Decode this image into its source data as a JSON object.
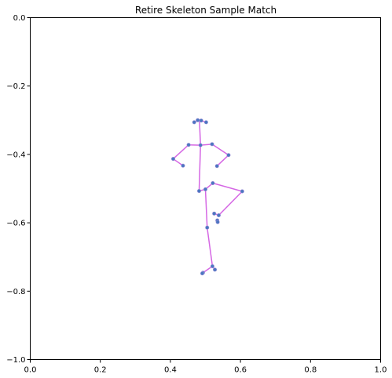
{
  "chart_data": {
    "type": "scatter",
    "title": "Retire Skeleton Sample Match",
    "xlabel": "",
    "ylabel": "",
    "xlim": [
      0,
      1
    ],
    "ylim": [
      -1,
      0
    ],
    "grid": false,
    "x_ticks": [
      0.0,
      0.2,
      0.4,
      0.6,
      0.8,
      1.0
    ],
    "x_tick_labels": [
      "0.0",
      "0.2",
      "0.4",
      "0.6",
      "0.8",
      "1.0"
    ],
    "y_ticks": [
      0.0,
      -0.2,
      -0.4,
      -0.6,
      -0.8,
      -1.0
    ],
    "y_tick_labels": [
      "0.0",
      "−0.2",
      "−0.4",
      "−0.6",
      "−0.8",
      "−1.0"
    ],
    "colors": {
      "bones": "#d567e4",
      "joints": "#4a78c0"
    },
    "joints": [
      {
        "x": 0.478,
        "y": -0.3
      },
      {
        "x": 0.488,
        "y": -0.301
      },
      {
        "x": 0.468,
        "y": -0.306
      },
      {
        "x": 0.502,
        "y": -0.306
      },
      {
        "x": 0.486,
        "y": -0.373
      },
      {
        "x": 0.452,
        "y": -0.372
      },
      {
        "x": 0.519,
        "y": -0.37
      },
      {
        "x": 0.408,
        "y": -0.413
      },
      {
        "x": 0.566,
        "y": -0.402
      },
      {
        "x": 0.436,
        "y": -0.433
      },
      {
        "x": 0.533,
        "y": -0.434
      },
      {
        "x": 0.482,
        "y": -0.507
      },
      {
        "x": 0.5,
        "y": -0.502
      },
      {
        "x": 0.521,
        "y": -0.484
      },
      {
        "x": 0.605,
        "y": -0.508
      },
      {
        "x": 0.525,
        "y": -0.573
      },
      {
        "x": 0.538,
        "y": -0.578
      },
      {
        "x": 0.534,
        "y": -0.593
      },
      {
        "x": 0.535,
        "y": -0.598
      },
      {
        "x": 0.505,
        "y": -0.614
      },
      {
        "x": 0.52,
        "y": -0.727
      },
      {
        "x": 0.527,
        "y": -0.737
      },
      {
        "x": 0.493,
        "y": -0.746
      },
      {
        "x": 0.491,
        "y": -0.748
      }
    ],
    "bones": [
      [
        [
          0.478,
          -0.3
        ],
        [
          0.468,
          -0.306
        ]
      ],
      [
        [
          0.488,
          -0.301
        ],
        [
          0.502,
          -0.306
        ]
      ],
      [
        [
          0.483,
          -0.303
        ],
        [
          0.486,
          -0.373
        ]
      ],
      [
        [
          0.452,
          -0.372
        ],
        [
          0.486,
          -0.373
        ]
      ],
      [
        [
          0.486,
          -0.373
        ],
        [
          0.519,
          -0.37
        ]
      ],
      [
        [
          0.452,
          -0.372
        ],
        [
          0.408,
          -0.413
        ]
      ],
      [
        [
          0.408,
          -0.413
        ],
        [
          0.436,
          -0.433
        ]
      ],
      [
        [
          0.519,
          -0.37
        ],
        [
          0.566,
          -0.402
        ]
      ],
      [
        [
          0.566,
          -0.402
        ],
        [
          0.533,
          -0.434
        ]
      ],
      [
        [
          0.486,
          -0.373
        ],
        [
          0.482,
          -0.507
        ]
      ],
      [
        [
          0.482,
          -0.507
        ],
        [
          0.5,
          -0.502
        ]
      ],
      [
        [
          0.5,
          -0.502
        ],
        [
          0.521,
          -0.484
        ]
      ],
      [
        [
          0.521,
          -0.484
        ],
        [
          0.605,
          -0.508
        ]
      ],
      [
        [
          0.605,
          -0.508
        ],
        [
          0.538,
          -0.578
        ]
      ],
      [
        [
          0.538,
          -0.578
        ],
        [
          0.525,
          -0.573
        ]
      ],
      [
        [
          0.5,
          -0.502
        ],
        [
          0.505,
          -0.614
        ]
      ],
      [
        [
          0.505,
          -0.614
        ],
        [
          0.52,
          -0.727
        ]
      ],
      [
        [
          0.52,
          -0.727
        ],
        [
          0.527,
          -0.737
        ]
      ],
      [
        [
          0.52,
          -0.727
        ],
        [
          0.493,
          -0.746
        ]
      ]
    ]
  }
}
